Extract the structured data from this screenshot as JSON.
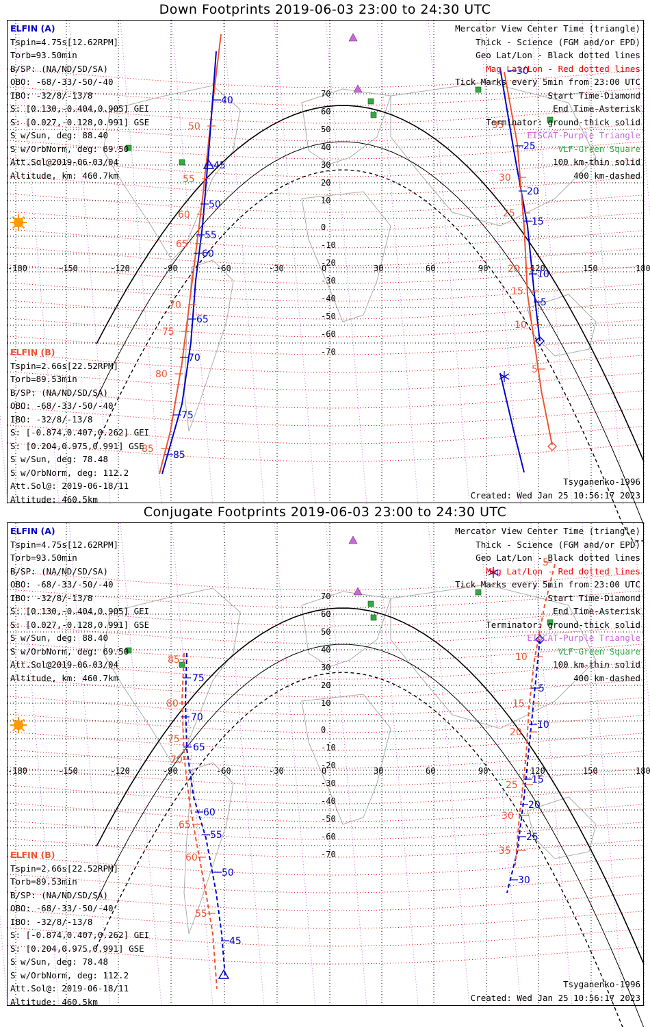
{
  "panels": [
    {
      "title": "Down Footprints 2019-06-03 23:00 to 24:30 UTC",
      "elfin_a": {
        "label": "ELFIN (A)",
        "lines": [
          "Tspin=4.75s[12.62RPM]",
          "Torb=93.50min",
          "B/SP: (NA/ND/SD/SA)",
          "OBO: -68/-33/-50/-40",
          "IBO: -32/8/-13/8",
          "S: [0.130,-0.404,0.905] GEI",
          "S: [0.027,-0.128,0.991] GSE",
          "S w/Sun, deg: 88.40",
          "S w/OrbNorm, deg: 69.50",
          "Att.Sol@2019-06-03/04",
          "Altitude, km: 460.7km"
        ]
      },
      "elfin_b": {
        "label": "ELFIN (B)",
        "lines": [
          "Tspin=2.66s[22.52RPM]",
          "Torb=89.53min",
          "B/SP: (NA/ND/SD/SA)",
          "OBO: -68/-33/-50/-40",
          "IBO: -32/8/-13/8",
          "S: [-0.874,0.407,0.262] GEI",
          "S: [0.204,0.975,0.991] GSE",
          "S w/Sun, deg: 78.48",
          "S w/OrbNorm, deg: 112.2",
          "Att.Sol@: 2019-06-18/11",
          "Altitude: 460.5km"
        ]
      },
      "legend": [
        {
          "text": "Mercator View Center Time (triangle)",
          "color": "black"
        },
        {
          "text": "Thick - Science (FGM and/or EPD)",
          "color": "black"
        },
        {
          "text": "Geo Lat/Lon - Black dotted lines",
          "color": "black"
        },
        {
          "text": "Mag Lat/Lon - Red dotted lines",
          "color": "red"
        },
        {
          "text": "Tick Marks every 5min from 23:00 UTC",
          "color": "black"
        },
        {
          "text": "Start Time-Diamond",
          "color": "black"
        },
        {
          "text": "End Time-Asterisk",
          "color": "black"
        },
        {
          "text": "Terminator: ground-thick solid",
          "color": "black"
        },
        {
          "text": "EISCAT-Purple Triangle",
          "color": "purple"
        },
        {
          "text": "VLF-Green Square",
          "color": "green"
        },
        {
          "text": "100 km-thin solid",
          "color": "black"
        },
        {
          "text": "400 km-dashed",
          "color": "black"
        }
      ],
      "model": "Tsyganenko-1996",
      "created": "Created: Wed Jan 25 10:56:17 2023"
    },
    {
      "title": "Conjugate Footprints 2019-06-03 23:00 to 24:30 UTC",
      "elfin_a": {
        "label": "ELFIN (A)",
        "lines": [
          "Tspin=4.75s[12.62RPM]",
          "Torb=93.50min",
          "B/SP: (NA/ND/SD/SA)",
          "OBO: -68/-33/-50/-40",
          "IBO: -32/8/-13/8",
          "S: [0.130,-0.404,0.905] GEI",
          "S: [0.027,-0.128,0.991] GSE",
          "S w/Sun, deg: 88.40",
          "S w/OrbNorm, deg: 69.50",
          "Att.Sol@2019-06-03/04",
          "Altitude, km: 460.7km"
        ]
      },
      "elfin_b": {
        "label": "ELFIN (B)",
        "lines": [
          "Tspin=2.66s[22.52RPM]",
          "Torb=89.53min",
          "B/SP: (NA/ND/SD/SA)",
          "OBO: -68/-33/-50/-40",
          "IBO: -32/8/-13/8",
          "S: [-0.874,0.407,0.262] GEI",
          "S: [0.204,0.975,0.991] GSE",
          "S w/Sun, deg: 78.48",
          "S w/OrbNorm, deg: 112.2",
          "Att.Sol@: 2019-06-18/11",
          "Altitude: 460.5km"
        ]
      },
      "legend": [
        {
          "text": "Mercator View Center Time (triangle)",
          "color": "black"
        },
        {
          "text": "Thick - Science (FGM and/or EPD)",
          "color": "black"
        },
        {
          "text": "Geo Lat/Lon - Black dotted lines",
          "color": "black"
        },
        {
          "text": "Mag Lat/Lon - Red dotted lines",
          "color": "red"
        },
        {
          "text": "Tick Marks every 5min from 23:00 UTC",
          "color": "black"
        },
        {
          "text": "Start Time-Diamond",
          "color": "black"
        },
        {
          "text": "End Time-Asterisk",
          "color": "black"
        },
        {
          "text": "Terminator: ground-thick solid",
          "color": "black"
        },
        {
          "text": "EISCAT-Purple Triangle",
          "color": "purple"
        },
        {
          "text": "VLF-Green Square",
          "color": "green"
        },
        {
          "text": "100 km-thin solid",
          "color": "black"
        },
        {
          "text": "400 km-dashed",
          "color": "black"
        }
      ],
      "model": "Tsyganenko-1996",
      "created": "Created: Wed Jan 25 10:56:17 2023"
    }
  ],
  "lon_ticks": [
    "-180",
    "-150",
    "-120",
    "-90",
    "-60",
    "-30",
    "0",
    "30",
    "60",
    "90",
    "120",
    "150",
    "180"
  ],
  "lat_ticks": [
    "70",
    "60",
    "50",
    "40",
    "30",
    "20",
    "10",
    "0",
    "-10",
    "-20",
    "-30",
    "-40",
    "-50",
    "-60",
    "-70"
  ],
  "colors": {
    "elfin_a": "#0000cc",
    "elfin_b": "#ee5533",
    "mag_grid": "#ee0000",
    "geo_grid": "#000000",
    "eiscat": "#cc66dd",
    "vlf": "#33aa44",
    "sun": "#ff9900"
  },
  "icons": {
    "sun": "sun-icon",
    "start": "diamond-icon",
    "end": "asterisk-icon",
    "center": "triangle-icon",
    "eiscat": "purple-triangle-icon",
    "vlf": "green-square-icon"
  },
  "track_labels": {
    "down_a": [
      "40",
      "45",
      "50",
      "55",
      "60",
      "65",
      "70",
      "75",
      "85",
      "5",
      "10",
      "15",
      "20",
      "25",
      "30"
    ],
    "down_b": [
      "50",
      "55",
      "60",
      "65",
      "70",
      "75",
      "80",
      "85",
      "35",
      "30",
      "25",
      "20",
      "15",
      "10",
      "5"
    ],
    "conj_a": [
      "75",
      "70",
      "65",
      "60",
      "55",
      "50",
      "45",
      "5",
      "10",
      "15",
      "20",
      "25",
      "30"
    ],
    "conj_b": [
      "85",
      "80",
      "75",
      "70",
      "65",
      "60",
      "55",
      "5",
      "10",
      "15",
      "20",
      "25",
      "30",
      "35"
    ]
  }
}
